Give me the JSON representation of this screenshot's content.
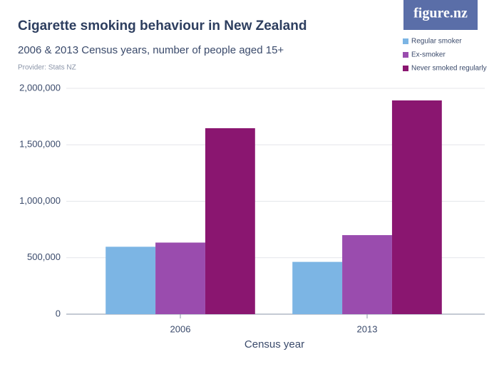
{
  "logo": "figure.nz",
  "chart_data": {
    "type": "bar",
    "title": "Cigarette smoking behaviour in New Zealand",
    "subtitle": "2006 & 2013 Census years, number of people aged 15+",
    "provider": "Provider: Stats NZ",
    "x_label": "Census year",
    "categories": [
      "2006",
      "2013"
    ],
    "series": [
      {
        "name": "Regular smoker",
        "color": "#7cb5e4",
        "values": [
          597000,
          463000
        ]
      },
      {
        "name": "Ex-smoker",
        "color": "#9a4cae",
        "values": [
          634000,
          700000
        ]
      },
      {
        "name": "Never smoked regularly",
        "color": "#8a1670",
        "values": [
          1647000,
          1893000
        ]
      }
    ],
    "ylim": [
      0,
      2000000
    ],
    "yticks": [
      0,
      {
        "value": 500000,
        "label": "500,000"
      },
      {
        "value": 1000000,
        "label": "1,000,000"
      },
      {
        "value": 1500000,
        "label": "1,500,000"
      },
      {
        "value": 2000000,
        "label": "2,000,000"
      }
    ],
    "grid": true,
    "legend": "top-right"
  }
}
